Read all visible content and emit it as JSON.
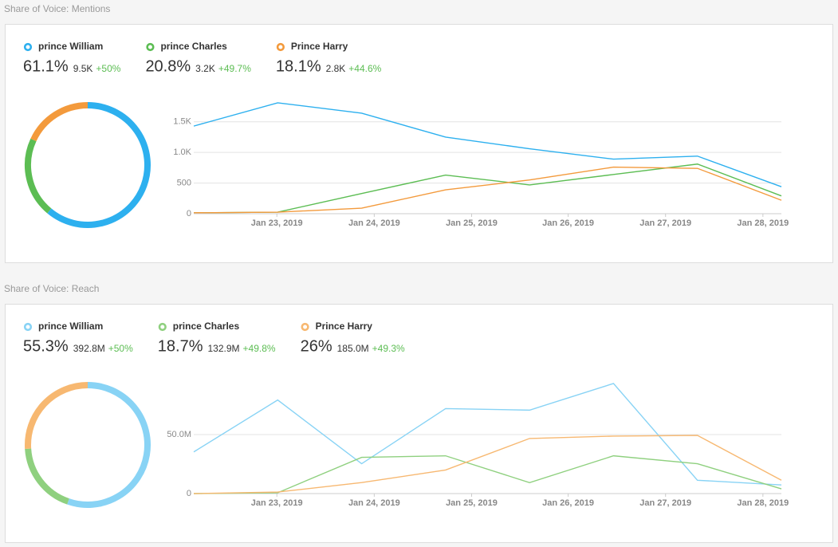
{
  "panels": [
    {
      "title": "Share of Voice: Mentions",
      "stats": [
        {
          "count": "9.5K",
          "change": "+50%"
        },
        {
          "count": "3.2K",
          "change": "+49.7%"
        },
        {
          "count": "2.8K",
          "change": "+44.6%"
        }
      ]
    },
    {
      "title": "Share of Voice: Reach",
      "stats": [
        {
          "count": "392.8M",
          "change": "+50%"
        },
        {
          "count": "132.9M",
          "change": "+49.8%"
        },
        {
          "count": "185.0M",
          "change": "+49.3%"
        }
      ]
    }
  ],
  "chart_data": [
    {
      "type": "pie",
      "categories": [
        "prince William",
        "prince Charles",
        "Prince Harry"
      ],
      "values": [
        61.1,
        20.8,
        18.1
      ],
      "value_labels": [
        "61.1%",
        "20.8%",
        "18.1%"
      ],
      "colors": [
        "#2db0ef",
        "#5cbd53",
        "#f39a3c"
      ]
    },
    {
      "type": "line",
      "x": [
        0,
        1,
        2,
        3,
        4,
        5,
        6,
        7
      ],
      "xlim": [
        0,
        7
      ],
      "xticks": [
        {
          "value": 0.99,
          "label": "Jan 23, 2019"
        },
        {
          "value": 2.15,
          "label": "Jan 24, 2019"
        },
        {
          "value": 3.31,
          "label": "Jan 25, 2019"
        },
        {
          "value": 4.46,
          "label": "Jan 26, 2019"
        },
        {
          "value": 5.62,
          "label": "Jan 27, 2019"
        },
        {
          "value": 6.78,
          "label": "Jan 28, 2019"
        }
      ],
      "ylim": [
        0,
        1900
      ],
      "yticks": [
        0,
        500,
        {
          "value": 1000,
          "label": "1.0K"
        },
        {
          "value": 1500,
          "label": "1.5K"
        }
      ],
      "grid": true,
      "series": [
        {
          "name": "prince William",
          "color": "#2db0ef",
          "values": [
            1430,
            1810,
            1640,
            1250,
            1060,
            890,
            940,
            440
          ]
        },
        {
          "name": "prince Charles",
          "color": "#5cbd53",
          "values": [
            15,
            25,
            330,
            630,
            470,
            640,
            810,
            290
          ]
        },
        {
          "name": "Prince Harry",
          "color": "#f39a3c",
          "values": [
            15,
            25,
            90,
            390,
            550,
            760,
            740,
            220
          ]
        }
      ]
    },
    {
      "type": "pie",
      "categories": [
        "prince William",
        "prince Charles",
        "Prince Harry"
      ],
      "values": [
        55.3,
        18.7,
        26
      ],
      "value_labels": [
        "55.3%",
        "18.7%",
        "26%"
      ],
      "colors": [
        "#88d3f5",
        "#8fd07f",
        "#f7b871"
      ]
    },
    {
      "type": "line",
      "x": [
        0,
        1,
        2,
        3,
        4,
        5,
        6,
        7
      ],
      "xlim": [
        0,
        7
      ],
      "xticks": [
        {
          "value": 0.99,
          "label": "Jan 23, 2019"
        },
        {
          "value": 2.15,
          "label": "Jan 24, 2019"
        },
        {
          "value": 3.31,
          "label": "Jan 25, 2019"
        },
        {
          "value": 4.46,
          "label": "Jan 26, 2019"
        },
        {
          "value": 5.62,
          "label": "Jan 27, 2019"
        },
        {
          "value": 6.78,
          "label": "Jan 28, 2019"
        }
      ],
      "ylim": [
        0,
        100000000
      ],
      "yticks": [
        0,
        {
          "value": 50000000,
          "label": "50.0M"
        }
      ],
      "grid": true,
      "series": [
        {
          "name": "prince William",
          "color": "#88d3f5",
          "values": [
            35300000,
            79300000,
            25300000,
            72000000,
            70700000,
            93300000,
            11300000,
            7300000
          ]
        },
        {
          "name": "prince Charles",
          "color": "#8fd07f",
          "values": [
            0,
            700000,
            30700000,
            32000000,
            9300000,
            32000000,
            25300000,
            4000000
          ]
        },
        {
          "name": "Prince Harry",
          "color": "#f7b871",
          "values": [
            0,
            1300000,
            9300000,
            20000000,
            46700000,
            48700000,
            49300000,
            11300000
          ]
        }
      ]
    }
  ]
}
